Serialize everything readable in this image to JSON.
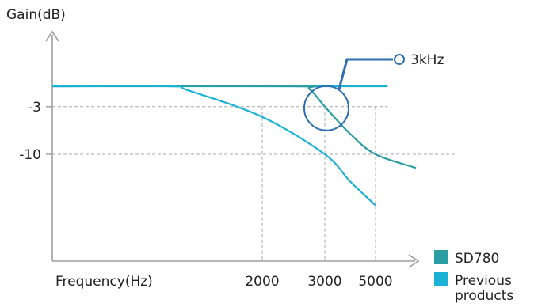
{
  "chart_data": {
    "type": "line",
    "ylabel": "Gain(dB)",
    "xlabel": "Frequency(Hz)",
    "x_ticks": [
      {
        "value": 2000,
        "label": "2000"
      },
      {
        "value": 3000,
        "label": "3000"
      },
      {
        "value": 5000,
        "label": "5000"
      }
    ],
    "y_ticks": [
      {
        "value": -3,
        "label": "-3"
      },
      {
        "value": -10,
        "label": "-10"
      }
    ],
    "series": [
      {
        "name": "SD780",
        "color": "#2a9ea3",
        "points": [
          [
            1000,
            0
          ],
          [
            2500,
            0
          ],
          [
            2750,
            -0.4
          ],
          [
            3000,
            -3
          ],
          [
            4000,
            -7
          ],
          [
            5000,
            -10
          ],
          [
            6000,
            -12
          ]
        ]
      },
      {
        "name": "Previous products",
        "color": "#1cb2d6",
        "points": [
          [
            1000,
            0
          ],
          [
            1250,
            0
          ],
          [
            1400,
            -0.6
          ],
          [
            2000,
            -4.5
          ],
          [
            3000,
            -10
          ],
          [
            4000,
            -14
          ],
          [
            5000,
            -17.5
          ]
        ]
      }
    ],
    "flat_reference": {
      "color": "#1cb2d6",
      "points": [
        [
          1000,
          0
        ],
        [
          5300,
          0
        ]
      ]
    },
    "annotation": {
      "label": "3kHz",
      "x": 3000,
      "y": -3,
      "color": "#2e6fb0"
    },
    "legend": [
      {
        "label": "SD780",
        "color": "#2a9ea3"
      },
      {
        "label": "Previous products",
        "color": "#1cb2d6"
      }
    ],
    "legend_position": "bottom-right",
    "grid": "dashed reference lines at ticks"
  }
}
